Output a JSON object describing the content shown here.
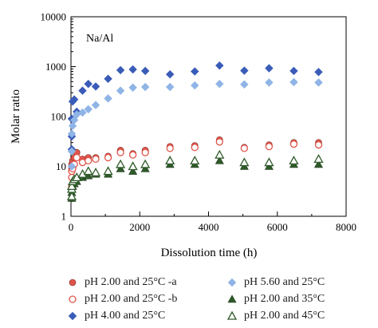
{
  "chart_data": {
    "type": "scatter",
    "title": "",
    "annotation": "Na/Al",
    "xlabel": "Dissolution time (h)",
    "ylabel": "Molar ratio",
    "xlim": [
      0,
      8000
    ],
    "ylim": [
      1,
      10000
    ],
    "yscale": "log",
    "xticks": [
      "0",
      "2000",
      "4000",
      "6000",
      "8000"
    ],
    "yticks": [
      "1",
      "10",
      "100",
      "1000",
      "10000"
    ],
    "grid": false,
    "legend_position": "bottom",
    "series": [
      {
        "name": "pH 2.00 and 25°C -a",
        "marker": "circle-filled",
        "color": "#e0544a",
        "x": [
          0,
          10,
          24,
          48,
          96,
          168,
          336,
          504,
          720,
          1080,
          1440,
          1800,
          2160,
          2880,
          3600,
          4320,
          5040,
          5760,
          6480,
          7200
        ],
        "y": [
          6,
          9,
          11,
          13,
          15,
          19,
          14,
          15,
          15,
          16,
          21,
          18,
          21,
          25,
          26,
          34,
          24,
          27,
          30,
          30
        ]
      },
      {
        "name": "pH 2.00 and 25°C -b",
        "marker": "circle-open",
        "color": "#e0544a",
        "x": [
          0,
          10,
          24,
          48,
          96,
          168,
          336,
          504,
          720,
          1080,
          1440,
          1800,
          2160,
          2880,
          3600,
          4320,
          5040,
          5760,
          6480,
          7200
        ],
        "y": [
          4,
          6,
          8,
          9,
          11,
          15,
          12,
          13,
          14,
          15,
          19,
          17,
          19,
          23,
          24,
          31,
          23,
          25,
          28,
          27
        ]
      },
      {
        "name": "pH 4.00 and 25°C",
        "marker": "diamond-filled",
        "color": "#3a5cb8",
        "x": [
          0,
          10,
          24,
          48,
          96,
          168,
          336,
          504,
          720,
          1080,
          1440,
          1800,
          2160,
          2880,
          3600,
          4320,
          5040,
          5760,
          6480,
          7200
        ],
        "y": [
          22,
          40,
          90,
          200,
          220,
          125,
          330,
          450,
          400,
          570,
          850,
          880,
          820,
          700,
          800,
          1050,
          830,
          930,
          820,
          780
        ]
      },
      {
        "name": "pH 5.60 and 25°C",
        "marker": "diamond-filled",
        "color": "#8fb4e6",
        "x": [
          0,
          10,
          24,
          48,
          96,
          168,
          336,
          504,
          720,
          1080,
          1440,
          1800,
          2160,
          2880,
          3600,
          4320,
          5040,
          5760,
          6480,
          7200
        ],
        "y": [
          10,
          20,
          45,
          65,
          85,
          110,
          120,
          140,
          170,
          230,
          330,
          380,
          390,
          390,
          420,
          450,
          440,
          480,
          490,
          480
        ]
      },
      {
        "name": "pH 2.00 and 35°C",
        "marker": "triangle-filled",
        "color": "#2f5a2a",
        "x": [
          0,
          10,
          24,
          48,
          96,
          168,
          336,
          504,
          720,
          1080,
          1440,
          1800,
          2160,
          2880,
          3600,
          4320,
          5040,
          5760,
          6480,
          7200
        ],
        "y": [
          2.3,
          3,
          3.5,
          4,
          4.5,
          5,
          6,
          6.5,
          7,
          7,
          9,
          8,
          9,
          11,
          11,
          13,
          10,
          10,
          11,
          11
        ]
      },
      {
        "name": "pH 2.00 and 45°C",
        "marker": "triangle-open",
        "color": "#2f5a2a",
        "x": [
          0,
          10,
          24,
          48,
          96,
          168,
          336,
          504,
          720,
          1080,
          1440,
          1800,
          2160,
          2880,
          3600,
          4320,
          5040,
          5760,
          6480,
          7200
        ],
        "y": [
          2.5,
          3.5,
          4,
          5,
          5.5,
          6,
          7,
          8,
          7.5,
          8,
          11,
          10,
          11,
          13,
          13,
          17,
          12,
          12,
          13,
          14
        ]
      }
    ]
  }
}
